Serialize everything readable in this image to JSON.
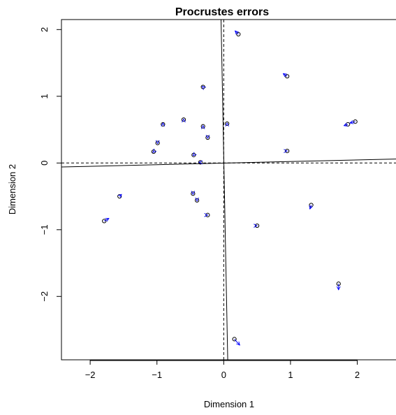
{
  "chart_data": {
    "type": "scatter",
    "title": "Procrustes errors",
    "xlabel": "Dimension 1",
    "ylabel": "Dimension 2",
    "xlim": [
      -2.43,
      2.58
    ],
    "ylim": [
      -2.95,
      2.15
    ],
    "xticks": [
      "−2",
      "−1",
      "0",
      "1",
      "2"
    ],
    "xtick_values": [
      -2,
      -1,
      0,
      1,
      2
    ],
    "yticks": [
      "−2",
      "−1",
      "0",
      "1",
      "2"
    ],
    "ytick_values": [
      -2,
      -1,
      0,
      1,
      2
    ],
    "grid": false,
    "colors": {
      "points": "#000000",
      "arrows": "#0000ff",
      "axes": "#000000"
    },
    "rotated_axes": [
      {
        "points": [
          [
            -2.43,
            -0.06
          ],
          [
            2.58,
            0.06
          ]
        ]
      },
      {
        "points": [
          [
            -0.04,
            2.15
          ],
          [
            0.06,
            -2.95
          ]
        ]
      }
    ],
    "dashed_axes": {
      "x": 0,
      "y": 0
    },
    "arrows": [
      {
        "x": [
          0.22,
          0.17
        ],
        "y": [
          1.93,
          1.98
        ]
      },
      {
        "x": [
          0.95,
          0.89
        ],
        "y": [
          1.3,
          1.34
        ]
      },
      {
        "x": [
          -0.31,
          -0.32
        ],
        "y": [
          1.14,
          1.15
        ]
      },
      {
        "x": [
          -0.6,
          -0.6
        ],
        "y": [
          0.65,
          0.66
        ]
      },
      {
        "x": [
          -0.91,
          -0.91
        ],
        "y": [
          0.58,
          0.6
        ]
      },
      {
        "x": [
          -0.31,
          -0.31
        ],
        "y": [
          0.55,
          0.56
        ]
      },
      {
        "x": [
          0.05,
          0.05
        ],
        "y": [
          0.59,
          0.6
        ]
      },
      {
        "x": [
          -0.24,
          -0.24
        ],
        "y": [
          0.38,
          0.37
        ]
      },
      {
        "x": [
          -0.99,
          -0.99
        ],
        "y": [
          0.3,
          0.29
        ]
      },
      {
        "x": [
          -1.05,
          -1.06
        ],
        "y": [
          0.17,
          0.16
        ]
      },
      {
        "x": [
          -0.45,
          -0.46
        ],
        "y": [
          0.12,
          0.11
        ]
      },
      {
        "x": [
          -0.35,
          -0.37
        ],
        "y": [
          0.01,
          0.01
        ]
      },
      {
        "x": [
          0.95,
          0.95
        ],
        "y": [
          0.18,
          0.18
        ]
      },
      {
        "x": [
          1.97,
          1.89
        ],
        "y": [
          0.62,
          0.6
        ]
      },
      {
        "x": [
          1.86,
          1.8
        ],
        "y": [
          0.58,
          0.56
        ]
      },
      {
        "x": [
          -1.56,
          -1.53
        ],
        "y": [
          -0.5,
          -0.47
        ]
      },
      {
        "x": [
          -1.79,
          -1.72
        ],
        "y": [
          -0.87,
          -0.83
        ]
      },
      {
        "x": [
          -0.46,
          -0.46
        ],
        "y": [
          -0.46,
          -0.47
        ]
      },
      {
        "x": [
          -0.4,
          -0.4
        ],
        "y": [
          -0.56,
          -0.57
        ]
      },
      {
        "x": [
          -0.24,
          -0.24
        ],
        "y": [
          -0.78,
          -0.78
        ]
      },
      {
        "x": [
          0.5,
          0.5
        ],
        "y": [
          -0.94,
          -0.94
        ]
      },
      {
        "x": [
          1.31,
          1.29
        ],
        "y": [
          -0.63,
          -0.69
        ]
      },
      {
        "x": [
          1.72,
          1.72
        ],
        "y": [
          -1.81,
          -1.9
        ]
      },
      {
        "x": [
          0.16,
          0.24
        ],
        "y": [
          -2.64,
          -2.73
        ]
      }
    ]
  }
}
